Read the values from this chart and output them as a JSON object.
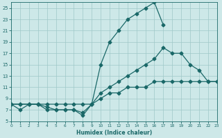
{
  "xlabel": "Humidex (Indice chaleur)",
  "ylabel": "",
  "bg_color": "#cde8e8",
  "grid_color": "#9fc8c8",
  "line_color": "#1a6868",
  "xlim": [
    0,
    23
  ],
  "ylim": [
    5,
    26
  ],
  "xticks": [
    0,
    1,
    2,
    3,
    4,
    5,
    6,
    7,
    8,
    9,
    10,
    11,
    12,
    13,
    14,
    15,
    16,
    17,
    18,
    19,
    20,
    21,
    22,
    23
  ],
  "yticks": [
    5,
    7,
    9,
    11,
    13,
    15,
    17,
    19,
    21,
    23,
    25
  ],
  "line1_x": [
    0,
    1,
    2,
    3,
    4,
    5,
    6,
    7,
    8,
    9,
    10,
    11,
    12,
    13,
    14,
    15,
    16,
    17,
    18,
    19,
    20,
    21,
    22,
    23
  ],
  "line1_y": [
    8,
    7,
    8,
    8,
    7,
    7,
    7,
    7,
    6,
    8,
    15,
    19,
    21,
    23,
    24,
    25,
    26,
    22,
    null,
    null,
    null,
    null,
    null,
    null
  ],
  "line2_x": [
    0,
    1,
    2,
    3,
    4,
    5,
    6,
    7,
    8,
    9,
    10,
    11,
    12,
    13,
    14,
    15,
    16,
    17,
    18,
    19,
    20,
    21,
    22,
    23
  ],
  "line2_y": [
    8,
    8,
    8,
    8,
    7.5,
    7,
    7,
    7,
    6.5,
    8,
    10,
    11,
    12,
    13,
    14,
    15,
    16,
    18,
    17,
    17,
    15,
    14,
    12,
    12
  ],
  "line3_x": [
    0,
    1,
    2,
    3,
    4,
    5,
    6,
    7,
    8,
    9,
    10,
    11,
    12,
    13,
    14,
    15,
    16,
    17,
    18,
    19,
    20,
    21,
    22,
    23
  ],
  "line3_y": [
    8,
    8,
    8,
    8,
    8,
    8,
    8,
    8,
    8,
    8,
    9,
    10,
    10,
    11,
    11,
    11,
    12,
    12,
    12,
    12,
    12,
    12,
    12,
    12
  ],
  "marker": "D",
  "markersize": 2.5,
  "linewidth": 0.9
}
